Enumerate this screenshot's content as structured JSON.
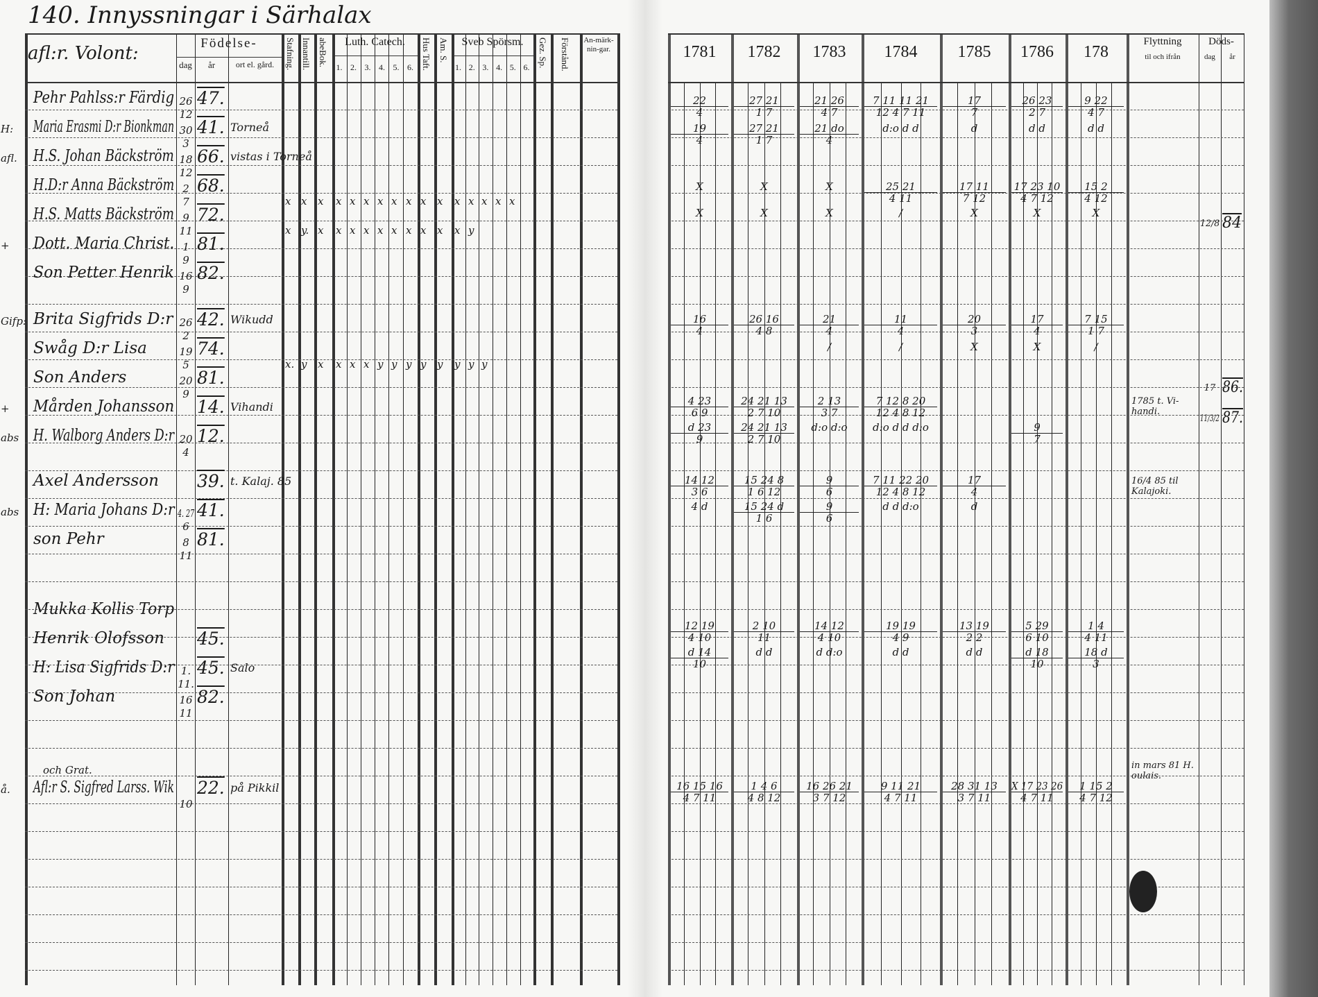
{
  "left_page": {
    "title": "140. Innyssningar i Särhalax",
    "header": {
      "name_col": "afl:r. Volont:",
      "fodelse": "Födelse-",
      "dag": "dag",
      "ar": "år",
      "ort": "ort el. gård.",
      "stafning": "Stafning.",
      "innantill": "Innantill.",
      "abc_bok": "abeBok.",
      "luth": "Luth. Catech.",
      "luth_nums": [
        "1.",
        "2.",
        "3.",
        "4.",
        "5.",
        "6."
      ],
      "hus_taft": "Hus Taft.",
      "am_s": "Am. S.",
      "sveb": "Sveb Spörsm.",
      "sveb_nums": [
        "1.",
        "2.",
        "3.",
        "4.",
        "5.",
        "6."
      ],
      "gez_sp": "Gez. Sp.",
      "forstand": "Förstånd.",
      "anmarkningar": "An-märk-nin-gar."
    },
    "entries": [
      {
        "margin": "",
        "name": "Pehr Pahlss:r Färdig",
        "dag": "26",
        "dag2": "12",
        "ar": "47.",
        "ort": ""
      },
      {
        "margin": "H:",
        "name": "Maria Erasmi D:r Bionkman",
        "dag": "30",
        "dag2": "3",
        "ar": "41.",
        "ort": "Torneå"
      },
      {
        "margin": "afl.",
        "name": "H.S. Johan Bäckström",
        "dag": "18",
        "dag2": "12",
        "ar": "66.",
        "ort": "vistas i Torneå"
      },
      {
        "margin": "",
        "name": "H.D:r Anna Bäckström",
        "dag": "2",
        "dag2": "7",
        "ar": "68.",
        "ort": "",
        "marks": [
          "x",
          "x",
          "x",
          "x",
          "x",
          "x",
          "x",
          "x",
          "x",
          "x",
          "x",
          "x",
          "x",
          "x",
          "x",
          "x"
        ]
      },
      {
        "margin": "",
        "name": "H.S. Matts Bäckström",
        "dag": "9",
        "dag2": "11",
        "ar": "72.",
        "ort": "",
        "marks": [
          "x",
          "y.",
          "x",
          "x",
          "x",
          "x",
          "x",
          "x",
          "x",
          "x",
          "x",
          "x",
          "y"
        ]
      },
      {
        "margin": "+",
        "name": "Dott. Maria Christ.",
        "dag": "1",
        "dag2": "9",
        "ar": "81.",
        "ort": ""
      },
      {
        "margin": "",
        "name": "Son Petter Henrik",
        "dag": "16",
        "dag2": "9",
        "ar": "82.",
        "ort": ""
      },
      {
        "margin": "Gifp:",
        "name": "Brita Sigfrids D:r",
        "dag": "26",
        "dag2": "2",
        "ar": "42.",
        "ort": "Wikudd"
      },
      {
        "margin": "",
        "name": "Swåg D:r Lisa",
        "dag": "19",
        "dag2": "5",
        "ar": "74.",
        "ort": "",
        "marks": [
          "x.",
          "y",
          "x",
          "x",
          "x",
          "x",
          "y",
          "y",
          "y",
          "y",
          "y",
          "y",
          "y",
          "y"
        ]
      },
      {
        "margin": "",
        "name": "Son Anders",
        "dag": "20",
        "dag2": "9",
        "ar": "81.",
        "ort": ""
      },
      {
        "margin": "+",
        "name": "Mården Johansson",
        "dag": "",
        "dag2": "",
        "ar": "14.",
        "ort": "Vihandi"
      },
      {
        "margin": "abs",
        "name": "H. Walborg Anders D:r",
        "dag": "20",
        "dag2": "4",
        "ar": "12.",
        "ort": ""
      },
      {
        "margin": "",
        "name": "Axel Andersson",
        "dag": "",
        "dag2": "",
        "ar": "39.",
        "ort": "t. Kalaj. 85"
      },
      {
        "margin": "abs",
        "name": "H: Maria Johans D:r",
        "dag": "4. 27",
        "dag2": "6",
        "ar": "41.",
        "ort": ""
      },
      {
        "margin": "",
        "name": "son Pehr",
        "dag": "8",
        "dag2": "11",
        "ar": "81.",
        "ort": ""
      },
      {
        "margin": "",
        "name": "Mukka Kollis Torp",
        "dag": "",
        "dag2": "",
        "ar": "",
        "ort": ""
      },
      {
        "margin": "",
        "name": "Henrik Olofsson",
        "dag": "",
        "dag2": "",
        "ar": "45.",
        "ort": ""
      },
      {
        "margin": "",
        "name": "H: Lisa Sigfrids D:r",
        "dag": "1.",
        "dag2": "11.",
        "ar": "45.",
        "ort": "Salo"
      },
      {
        "margin": "",
        "name": "Son Johan",
        "dag": "16",
        "dag2": "11",
        "ar": "82.",
        "ort": ""
      },
      {
        "margin": "å.",
        "name": "Afl:r S. Sigfred Larss. Wik",
        "note": "och Grat.",
        "dag": "",
        "dag2": "10",
        "ar": "22.",
        "ort": "på Pikkil"
      }
    ]
  },
  "right_page": {
    "years": [
      "1781",
      "1782",
      "1783",
      "1784",
      "1785",
      "1786",
      "178"
    ],
    "flyttning": "Flyttning",
    "flyttning_sub": "til och ifrån",
    "dods": "Döds-",
    "dods_dag": "dag",
    "dods_ar": "år",
    "rows": [
      {
        "cells": [
          {
            "y": 0,
            "t": "22",
            "b": "4"
          },
          {
            "y": 1,
            "t": "27 21",
            "b": "1 7"
          },
          {
            "y": 2,
            "t": "21 26",
            "b": "4 7"
          },
          {
            "y": 3,
            "t": "7 11 11 21",
            "b": "12 4 7 11"
          },
          {
            "y": 4,
            "t": "17",
            "b": "7"
          },
          {
            "y": 5,
            "t": "26 23",
            "b": "2 7"
          },
          {
            "y": 6,
            "t": "9 22",
            "b": "4 7"
          }
        ]
      },
      {
        "cells": [
          {
            "y": 0,
            "t": "19",
            "b": "4"
          },
          {
            "y": 1,
            "t": "27 21",
            "b": "1 7"
          },
          {
            "y": 2,
            "t": "21 do",
            "b": "4"
          },
          {
            "y": 3,
            "t": "d:o d d",
            "b": ""
          },
          {
            "y": 4,
            "t": "d",
            "b": ""
          },
          {
            "y": 5,
            "t": "d d",
            "b": ""
          },
          {
            "y": 6,
            "t": "d d",
            "b": ""
          }
        ]
      },
      {
        "cells": [
          {
            "y": 0,
            "t": "X",
            "b": ""
          },
          {
            "y": 1,
            "t": "X",
            "b": ""
          },
          {
            "y": 2,
            "t": "X",
            "b": ""
          },
          {
            "y": 3,
            "t": "25  21",
            "b": "4  11"
          },
          {
            "y": 4,
            "t": "17  11",
            "b": "7  12"
          },
          {
            "y": 5,
            "t": "17 23 10",
            "b": "4 7 12"
          },
          {
            "y": 6,
            "t": "15  2",
            "b": "4  12"
          }
        ]
      },
      {
        "cells": [
          {
            "y": 0,
            "t": "X",
            "b": ""
          },
          {
            "y": 1,
            "t": "X",
            "b": ""
          },
          {
            "y": 2,
            "t": "X",
            "b": ""
          },
          {
            "y": 3,
            "t": "/",
            "b": ""
          },
          {
            "y": 4,
            "t": "X",
            "b": ""
          },
          {
            "y": 5,
            "t": "X",
            "b": ""
          },
          {
            "y": 6,
            "t": "X",
            "b": ""
          }
        ]
      },
      {
        "cells": [
          {
            "y": 0,
            "t": "16",
            "b": "4"
          },
          {
            "y": 1,
            "t": "26 16",
            "b": "4 8"
          },
          {
            "y": 2,
            "t": "21",
            "b": "4"
          },
          {
            "y": 3,
            "t": "11",
            "b": "4"
          },
          {
            "y": 4,
            "t": "20",
            "b": "3"
          },
          {
            "y": 5,
            "t": "17",
            "b": "4"
          },
          {
            "y": 6,
            "t": "7 15",
            "b": "1 7"
          }
        ]
      },
      {
        "cells": [
          {
            "y": 2,
            "t": "/",
            "b": ""
          },
          {
            "y": 3,
            "t": "/",
            "b": ""
          },
          {
            "y": 4,
            "t": "X",
            "b": ""
          },
          {
            "y": 5,
            "t": "X",
            "b": ""
          },
          {
            "y": 6,
            "t": "/",
            "b": ""
          }
        ]
      },
      {
        "cells": [
          {
            "y": 0,
            "t": "4 23",
            "b": "6 9"
          },
          {
            "y": 1,
            "t": "24 21 13",
            "b": "2 7 10"
          },
          {
            "y": 2,
            "t": "2 13",
            "b": "3 7"
          },
          {
            "y": 3,
            "t": "7 12 8 20",
            "b": "12 4 8 12"
          }
        ]
      },
      {
        "cells": [
          {
            "y": 0,
            "t": "d 23",
            "b": "9"
          },
          {
            "y": 1,
            "t": "24 21 13",
            "b": "2 7 10"
          },
          {
            "y": 2,
            "t": "d:o d:o",
            "b": ""
          },
          {
            "y": 3,
            "t": "d:o d d d:o",
            "b": ""
          },
          {
            "y": 5,
            "t": "9",
            "b": "7"
          }
        ]
      },
      {
        "cells": [
          {
            "y": 0,
            "t": "14 12",
            "b": "3 6"
          },
          {
            "y": 1,
            "t": "15 24 8",
            "b": "1 6 12"
          },
          {
            "y": 2,
            "t": "9",
            "b": "6"
          },
          {
            "y": 3,
            "t": "7 11 22 20",
            "b": "12 4 8 12"
          },
          {
            "y": 4,
            "t": "17",
            "b": "4"
          }
        ]
      },
      {
        "cells": [
          {
            "y": 0,
            "t": "4 d",
            "b": ""
          },
          {
            "y": 1,
            "t": "15 24 d",
            "b": "1 6"
          },
          {
            "y": 2,
            "t": "9",
            "b": "6"
          },
          {
            "y": 3,
            "t": "d d d:o",
            "b": ""
          },
          {
            "y": 4,
            "t": "d",
            "b": ""
          }
        ]
      },
      {
        "cells": [
          {
            "y": 0,
            "t": "12 19",
            "b": "4 10"
          },
          {
            "y": 1,
            "t": "2 10",
            "b": "11"
          },
          {
            "y": 2,
            "t": "14 12",
            "b": "4 10"
          },
          {
            "y": 3,
            "t": "19 19",
            "b": "4 9"
          },
          {
            "y": 4,
            "t": "13 19",
            "b": "2 2"
          },
          {
            "y": 5,
            "t": "5 29",
            "b": "6 10"
          },
          {
            "y": 6,
            "t": "1 4",
            "b": "4 11"
          }
        ]
      },
      {
        "cells": [
          {
            "y": 0,
            "t": "d 14",
            "b": "10"
          },
          {
            "y": 1,
            "t": "d d",
            "b": ""
          },
          {
            "y": 2,
            "t": "d d:o",
            "b": ""
          },
          {
            "y": 3,
            "t": "d d",
            "b": ""
          },
          {
            "y": 4,
            "t": "d d",
            "b": ""
          },
          {
            "y": 5,
            "t": "d 18",
            "b": "10"
          },
          {
            "y": 6,
            "t": "18 d",
            "b": "3"
          }
        ]
      },
      {
        "cells": [
          {
            "y": 0,
            "t": "16 15 16",
            "b": "4 7 11"
          },
          {
            "y": 1,
            "t": "1 4 6",
            "b": "4 8 12"
          },
          {
            "y": 2,
            "t": "16 26 21",
            "b": "3 7 12"
          },
          {
            "y": 3,
            "t": "9 11 21",
            "b": "4 7 11"
          },
          {
            "y": 4,
            "t": "28 31 13",
            "b": "3 7 11"
          },
          {
            "y": 5,
            "t": "X 17 23 26",
            "b": "4 7 11"
          },
          {
            "y": 6,
            "t": "1 15 2",
            "b": "4 7 12"
          }
        ]
      }
    ],
    "moves": [
      {
        "text": "1785 t. Vi-handi."
      },
      {
        "text": "16/4 85 til Kalajoki."
      },
      {
        "text": "in mars 81 H. oulais."
      }
    ],
    "deaths": [
      {
        "dag": "12/8",
        "ar": "84"
      },
      {
        "dag": "17",
        "ar": "86."
      },
      {
        "dag": "11/3/2",
        "ar": "87."
      }
    ]
  }
}
